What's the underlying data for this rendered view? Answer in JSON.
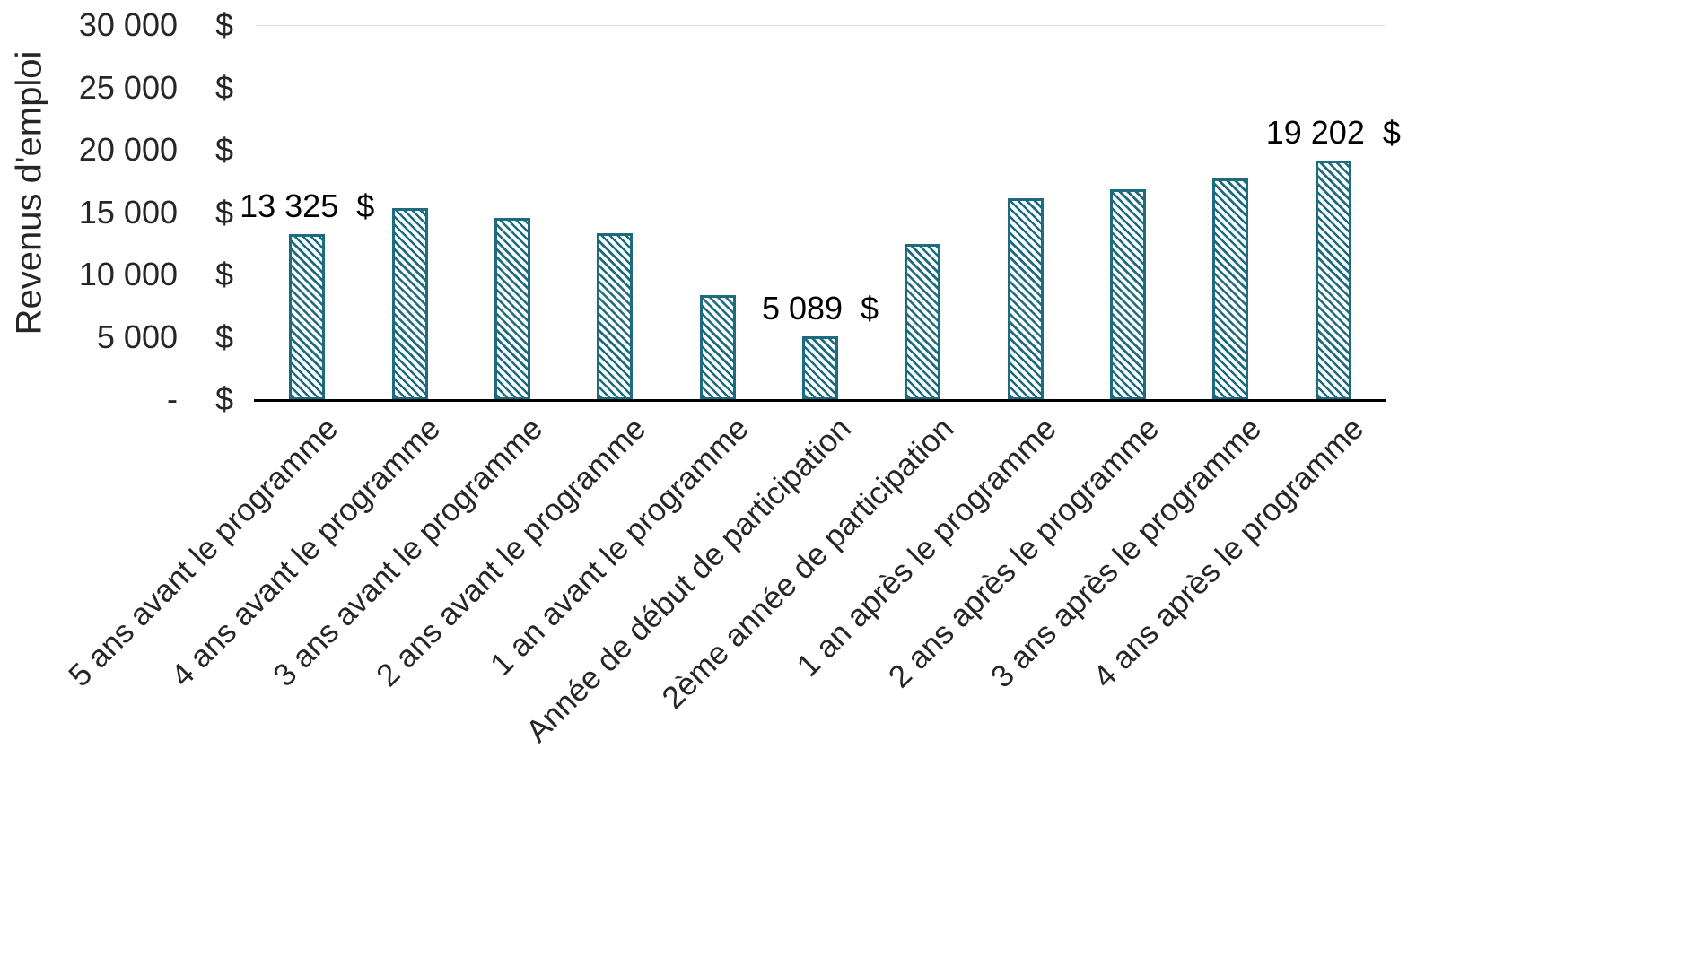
{
  "chart_data": {
    "type": "bar",
    "title": "",
    "xlabel": "",
    "ylabel": "Revenus d'emploi",
    "ylim": [
      0,
      30000
    ],
    "grid": "top-border-only",
    "legend": "none",
    "bar_color": "#1c6b7e",
    "bar_hatch": "diagonal-stripes",
    "y_ticks": [
      {
        "num": "30 000",
        "cur": "$",
        "value": 30000
      },
      {
        "num": "25 000",
        "cur": "$",
        "value": 25000
      },
      {
        "num": "20 000",
        "cur": "$",
        "value": 20000
      },
      {
        "num": "15 000",
        "cur": "$",
        "value": 15000
      },
      {
        "num": "10 000",
        "cur": "$",
        "value": 10000
      },
      {
        "num": "5 000",
        "cur": "$",
        "value": 5000
      },
      {
        "num": "-",
        "cur": "$",
        "value": 0
      }
    ],
    "categories": [
      "5 ans avant le programme",
      "4 ans avant le programme",
      "3 ans avant le programme",
      "2 ans avant le programme",
      "1 an avant le programme",
      "Année de début de participation",
      "2ème année de participation",
      "1 an après le programme",
      "2 ans après le programme",
      "3 ans après le programme",
      "4 ans après le programme"
    ],
    "values": [
      13325,
      15400,
      14600,
      13400,
      8400,
      5089,
      12500,
      16200,
      16900,
      17800,
      19202
    ],
    "data_labels": {
      "0": "13 325  $",
      "5": "5 089  $",
      "10": "19 202  $"
    }
  }
}
